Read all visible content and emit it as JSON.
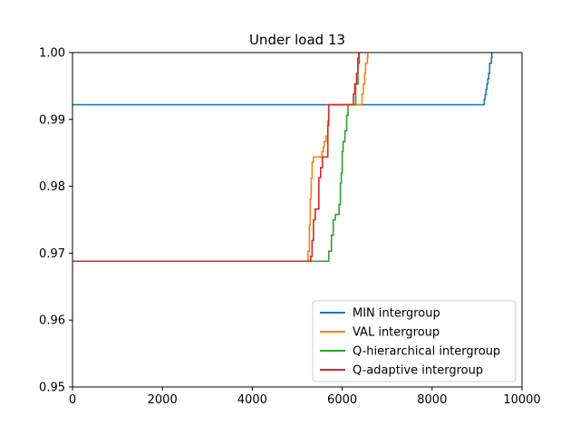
{
  "chart_data": {
    "type": "line",
    "title": "Under load 13",
    "xlabel": "",
    "ylabel": "",
    "xlim": [
      0,
      10000
    ],
    "ylim": [
      0.95,
      1.0
    ],
    "xticks": [
      0,
      2000,
      4000,
      6000,
      8000,
      10000
    ],
    "xtick_labels": [
      "0",
      "2000",
      "4000",
      "6000",
      "8000",
      "10000"
    ],
    "yticks": [
      0.95,
      0.96,
      0.97,
      0.98,
      0.99,
      1.0
    ],
    "ytick_labels": [
      "0.95",
      "0.96",
      "0.97",
      "0.98",
      "0.99",
      "1.00"
    ],
    "grid": false,
    "legend_position": "lower-right",
    "series": [
      {
        "name": "MIN intergroup",
        "color": "#1f77b4",
        "x": [
          0,
          9150,
          9160,
          9180,
          9200,
          9220,
          9240,
          9260,
          9280,
          9300,
          9320,
          9330
        ],
        "y": [
          0.9922,
          0.9922,
          0.993,
          0.9937,
          0.9945,
          0.9953,
          0.9961,
          0.9969,
          0.9984,
          0.9984,
          0.9992,
          1.0
        ]
      },
      {
        "name": "VAL intergroup",
        "color": "#ff7f0e",
        "x": [
          0,
          5200,
          5240,
          5270,
          5290,
          5310,
          5330,
          5360,
          5400,
          5500,
          5550,
          5580,
          5600,
          5640,
          5680,
          5700,
          6250,
          6400,
          6440,
          6470,
          6500,
          6520,
          6560,
          6570
        ],
        "y": [
          0.9688,
          0.9688,
          0.9703,
          0.9742,
          0.9781,
          0.9812,
          0.9836,
          0.9844,
          0.9844,
          0.9844,
          0.9852,
          0.9859,
          0.9867,
          0.9875,
          0.9898,
          0.9922,
          0.9922,
          0.9922,
          0.9938,
          0.9953,
          0.9969,
          0.9984,
          0.9992,
          1.0
        ]
      },
      {
        "name": "Q-hierarchical intergroup",
        "color": "#2ca02c",
        "x": [
          0,
          5650,
          5700,
          5760,
          5800,
          5850,
          5900,
          5930,
          5960,
          5980,
          6000,
          6020,
          6060,
          6100,
          6130,
          6150,
          6200,
          6300,
          6350,
          6380
        ],
        "y": [
          0.9688,
          0.9688,
          0.9703,
          0.9727,
          0.975,
          0.9758,
          0.9758,
          0.9773,
          0.9805,
          0.982,
          0.9852,
          0.9867,
          0.9883,
          0.9906,
          0.9922,
          0.9922,
          0.9922,
          0.9953,
          0.9984,
          1.0
        ]
      },
      {
        "name": "Q-adaptive intergroup",
        "color": "#d62728",
        "x": [
          0,
          5250,
          5300,
          5330,
          5360,
          5400,
          5430,
          5480,
          5520,
          5560,
          5620,
          5650,
          5680,
          5700,
          6000,
          6150,
          6200,
          6250,
          6280,
          6320,
          6350,
          6370
        ],
        "y": [
          0.9688,
          0.9688,
          0.9695,
          0.9719,
          0.975,
          0.9766,
          0.9766,
          0.9813,
          0.9828,
          0.9844,
          0.9844,
          0.9844,
          0.9891,
          0.9922,
          0.9922,
          0.9922,
          0.9922,
          0.9938,
          0.9953,
          0.9969,
          0.9992,
          1.0
        ]
      }
    ]
  }
}
